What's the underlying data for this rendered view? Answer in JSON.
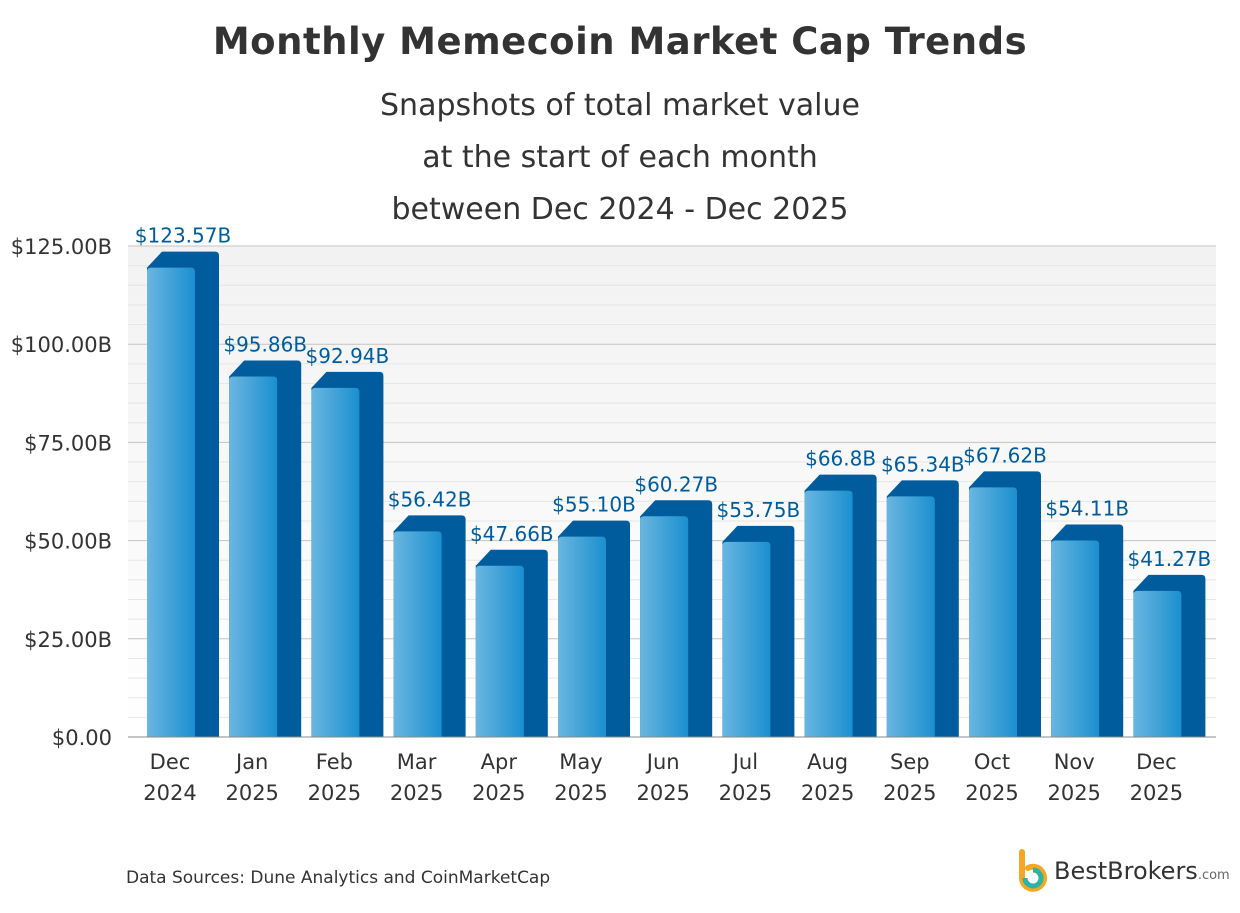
{
  "chart_data": {
    "type": "bar",
    "title": "Monthly Memecoin Market Cap Trends",
    "subtitle": "Snapshots of total market value at the start of each month between Dec 2024 - Dec 2025",
    "categories": [
      [
        "Dec",
        "2024"
      ],
      [
        "Jan",
        "2025"
      ],
      [
        "Feb",
        "2025"
      ],
      [
        "Mar",
        "2025"
      ],
      [
        "Apr",
        "2025"
      ],
      [
        "May",
        "2025"
      ],
      [
        "Jun",
        "2025"
      ],
      [
        "Jul",
        "2025"
      ],
      [
        "Aug",
        "2025"
      ],
      [
        "Sep",
        "2025"
      ],
      [
        "Oct",
        "2025"
      ],
      [
        "Nov",
        "2025"
      ],
      [
        "Dec",
        "2025"
      ]
    ],
    "values": [
      123.57,
      95.86,
      92.94,
      56.42,
      47.66,
      55.1,
      60.27,
      53.75,
      66.8,
      65.34,
      67.62,
      54.11,
      41.27
    ],
    "data_labels": [
      "$123.57B",
      "$95.86B",
      "$92.94B",
      "$56.42B",
      "$47.66B",
      "$55.10B",
      "$60.27B",
      "$53.75B",
      "$66.8B",
      "$65.34B",
      "$67.62B",
      "$54.11B",
      "$41.27B"
    ],
    "ylim": [
      0,
      125
    ],
    "yticks": [
      0,
      25,
      50,
      75,
      100,
      125
    ],
    "ytick_labels": [
      "$0.00",
      "$25.00B",
      "$50.00B",
      "$75.00B",
      "$100.00B",
      "$125.00B"
    ],
    "grid": true,
    "colors": {
      "front_light": "#6ab6e0",
      "front_dark": "#1a8fd0",
      "side": "#005c9c",
      "label": "#005c9c"
    }
  },
  "source": "Data Sources: Dune Analytics and CoinMarketCap",
  "logo": {
    "name": "BestBrokers",
    "suffix": ".com"
  }
}
